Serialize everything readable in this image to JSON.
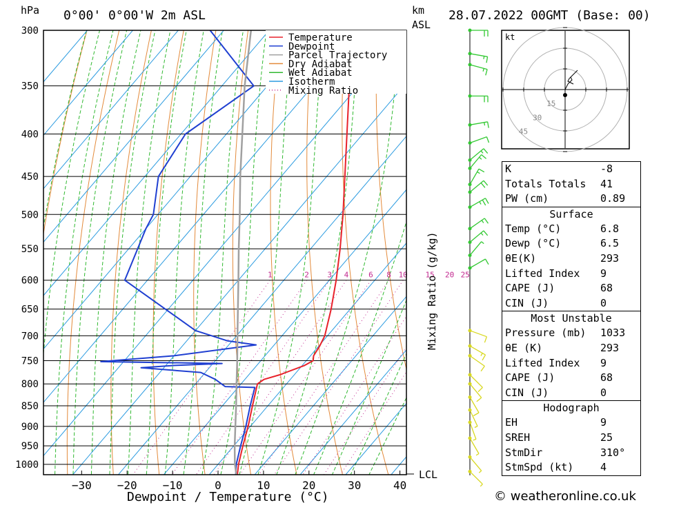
{
  "header": {
    "pressure_unit": "hPa",
    "location": "0°00' 0°00'W 2m ASL",
    "height_unit_top": "km",
    "height_unit_bottom": "ASL",
    "run_time": "28.07.2022 00GMT (Base: 00)"
  },
  "chart_data": {
    "type": "skew-t",
    "xlabel": "Dewpoint / Temperature (°C)",
    "right_label": "Mixing Ratio (g/kg)",
    "pressure_levels": [
      300,
      350,
      400,
      450,
      500,
      550,
      600,
      650,
      700,
      750,
      800,
      850,
      900,
      950,
      1000
    ],
    "x_ticks": [
      -30,
      -20,
      -10,
      0,
      10,
      20,
      30,
      40
    ],
    "xlim": [
      -38,
      42
    ],
    "ylim": [
      300,
      1050
    ],
    "mixing_ratio_labels": [
      1,
      2,
      3,
      4,
      6,
      8,
      10,
      15,
      20,
      25
    ],
    "lcl_label": "LCL",
    "legend": [
      "Temperature",
      "Dewpoint",
      "Parcel Trajectory",
      "Dry Adiabat",
      "Wet Adiabat",
      "Isotherm",
      "Mixing Ratio"
    ],
    "colors": {
      "temperature": "#e8212a",
      "dewpoint": "#1f3fd1",
      "parcel": "#a0a0a0",
      "dry_adiabat": "#e38a3a",
      "wet_adiabat": "#2fb82f",
      "isotherm": "#2b9be0",
      "mixing_ratio": "#c2288f",
      "wind_upper": "#32c832",
      "wind_lower": "#d8d820"
    },
    "series": [
      {
        "name": "Temperature",
        "points": [
          [
            1040,
            6.8
          ],
          [
            1000,
            4.5
          ],
          [
            950,
            2.0
          ],
          [
            900,
            -0.5
          ],
          [
            850,
            -3.4
          ],
          [
            800,
            -6.4
          ],
          [
            790,
            -5.8
          ],
          [
            780,
            -3.2
          ],
          [
            760,
            0.5
          ],
          [
            750,
            1.5
          ],
          [
            740,
            0.7
          ],
          [
            720,
            0.2
          ],
          [
            700,
            -0.6
          ],
          [
            650,
            -4.2
          ],
          [
            600,
            -8.5
          ],
          [
            550,
            -13.5
          ],
          [
            500,
            -19.3
          ],
          [
            450,
            -26.0
          ],
          [
            400,
            -33.5
          ],
          [
            350,
            -42.0
          ],
          [
            300,
            -52.0
          ]
        ]
      },
      {
        "name": "Dewpoint",
        "points": [
          [
            1040,
            6.5
          ],
          [
            1000,
            4.0
          ],
          [
            950,
            1.5
          ],
          [
            900,
            -1.0
          ],
          [
            850,
            -3.9
          ],
          [
            808,
            -6.3
          ],
          [
            806,
            -13.0
          ],
          [
            790,
            -16.5
          ],
          [
            775,
            -21.0
          ],
          [
            765,
            -35.0
          ],
          [
            760,
            -28.0
          ],
          [
            756,
            -18.0
          ],
          [
            752,
            -45.0
          ],
          [
            740,
            -30.0
          ],
          [
            718,
            -14.0
          ],
          [
            710,
            -21.0
          ],
          [
            690,
            -30.0
          ],
          [
            600,
            -55.0
          ],
          [
            520,
            -60.0
          ],
          [
            500,
            -61.0
          ],
          [
            450,
            -67.0
          ],
          [
            400,
            -69.0
          ],
          [
            350,
            -63.0
          ],
          [
            300,
            -83.0
          ]
        ]
      },
      {
        "name": "Parcel Trajectory",
        "points": [
          [
            1040,
            6.8
          ],
          [
            1000,
            3.7
          ],
          [
            950,
            0.2
          ],
          [
            900,
            -3.3
          ],
          [
            850,
            -7.0
          ],
          [
            800,
            -11.0
          ],
          [
            750,
            -15.2
          ],
          [
            700,
            -19.8
          ],
          [
            650,
            -24.7
          ],
          [
            600,
            -30.0
          ],
          [
            550,
            -35.8
          ],
          [
            500,
            -42.0
          ],
          [
            450,
            -49.0
          ],
          [
            400,
            -56.5
          ],
          [
            350,
            -65.0
          ],
          [
            300,
            -74.0
          ]
        ]
      }
    ],
    "wind_barbs": [
      {
        "p": 300,
        "dir": 270,
        "kt": 20
      },
      {
        "p": 320,
        "dir": 280,
        "kt": 15
      },
      {
        "p": 330,
        "dir": 285,
        "kt": 15
      },
      {
        "p": 360,
        "dir": 270,
        "kt": 20
      },
      {
        "p": 390,
        "dir": 260,
        "kt": 15
      },
      {
        "p": 410,
        "dir": 250,
        "kt": 10
      },
      {
        "p": 430,
        "dir": 230,
        "kt": 15
      },
      {
        "p": 440,
        "dir": 220,
        "kt": 15
      },
      {
        "p": 460,
        "dir": 210,
        "kt": 15
      },
      {
        "p": 470,
        "dir": 230,
        "kt": 20
      },
      {
        "p": 490,
        "dir": 240,
        "kt": 25
      },
      {
        "p": 520,
        "dir": 235,
        "kt": 15
      },
      {
        "p": 540,
        "dir": 230,
        "kt": 15
      },
      {
        "p": 560,
        "dir": 220,
        "kt": 5
      },
      {
        "p": 580,
        "dir": 240,
        "kt": 10
      },
      {
        "p": 690,
        "dir": 290,
        "kt": 10
      },
      {
        "p": 720,
        "dir": 300,
        "kt": 15
      },
      {
        "p": 740,
        "dir": 305,
        "kt": 10
      },
      {
        "p": 780,
        "dir": 315,
        "kt": 10
      },
      {
        "p": 800,
        "dir": 320,
        "kt": 10
      },
      {
        "p": 830,
        "dir": 330,
        "kt": 10
      },
      {
        "p": 860,
        "dir": 335,
        "kt": 5
      },
      {
        "p": 890,
        "dir": 340,
        "kt": 5
      },
      {
        "p": 930,
        "dir": 330,
        "kt": 5
      },
      {
        "p": 980,
        "dir": 320,
        "kt": 5
      },
      {
        "p": 1020,
        "dir": 315,
        "kt": 5
      }
    ],
    "hodograph": {
      "unit": "kt",
      "rings_kt": [
        15,
        30,
        45
      ],
      "ring_labels": [
        "15",
        "30",
        "45"
      ],
      "trace_uv": [
        [
          0,
          0
        ],
        [
          1,
          2
        ],
        [
          2,
          4
        ],
        [
          3,
          5
        ],
        [
          5,
          7
        ],
        [
          4,
          9
        ],
        [
          6,
          11
        ],
        [
          8,
          13
        ],
        [
          9,
          14
        ],
        [
          7,
          12
        ],
        [
          5,
          10
        ],
        [
          3,
          8
        ],
        [
          2,
          6
        ],
        [
          4,
          5
        ],
        [
          6,
          4
        ]
      ],
      "storm_motion_uv": [
        0,
        -4
      ]
    }
  },
  "info_table": {
    "top": [
      {
        "label": "K",
        "value": "-8"
      },
      {
        "label": "Totals Totals",
        "value": "41"
      },
      {
        "label": "PW (cm)",
        "value": "0.89"
      }
    ],
    "surface": {
      "title": "Surface",
      "rows": [
        {
          "label": "Temp (°C)",
          "value": "6.8"
        },
        {
          "label": "Dewp (°C)",
          "value": "6.5"
        },
        {
          "label": "θE(K)",
          "value": "293"
        },
        {
          "label": "Lifted Index",
          "value": "9"
        },
        {
          "label": "CAPE (J)",
          "value": "68"
        },
        {
          "label": "CIN (J)",
          "value": "0"
        }
      ]
    },
    "most_unstable": {
      "title": "Most Unstable",
      "rows": [
        {
          "label": "Pressure (mb)",
          "value": "1033"
        },
        {
          "label": "θE (K)",
          "value": "293"
        },
        {
          "label": "Lifted Index",
          "value": "9"
        },
        {
          "label": "CAPE (J)",
          "value": "68"
        },
        {
          "label": "CIN (J)",
          "value": "0"
        }
      ]
    },
    "hodograph": {
      "title": "Hodograph",
      "rows": [
        {
          "label": "EH",
          "value": "9"
        },
        {
          "label": "SREH",
          "value": "25"
        },
        {
          "label": "StmDir",
          "value": "310°"
        },
        {
          "label": "StmSpd (kt)",
          "value": "4"
        }
      ]
    }
  },
  "footer": {
    "copyright": "© weatheronline.co.uk"
  }
}
